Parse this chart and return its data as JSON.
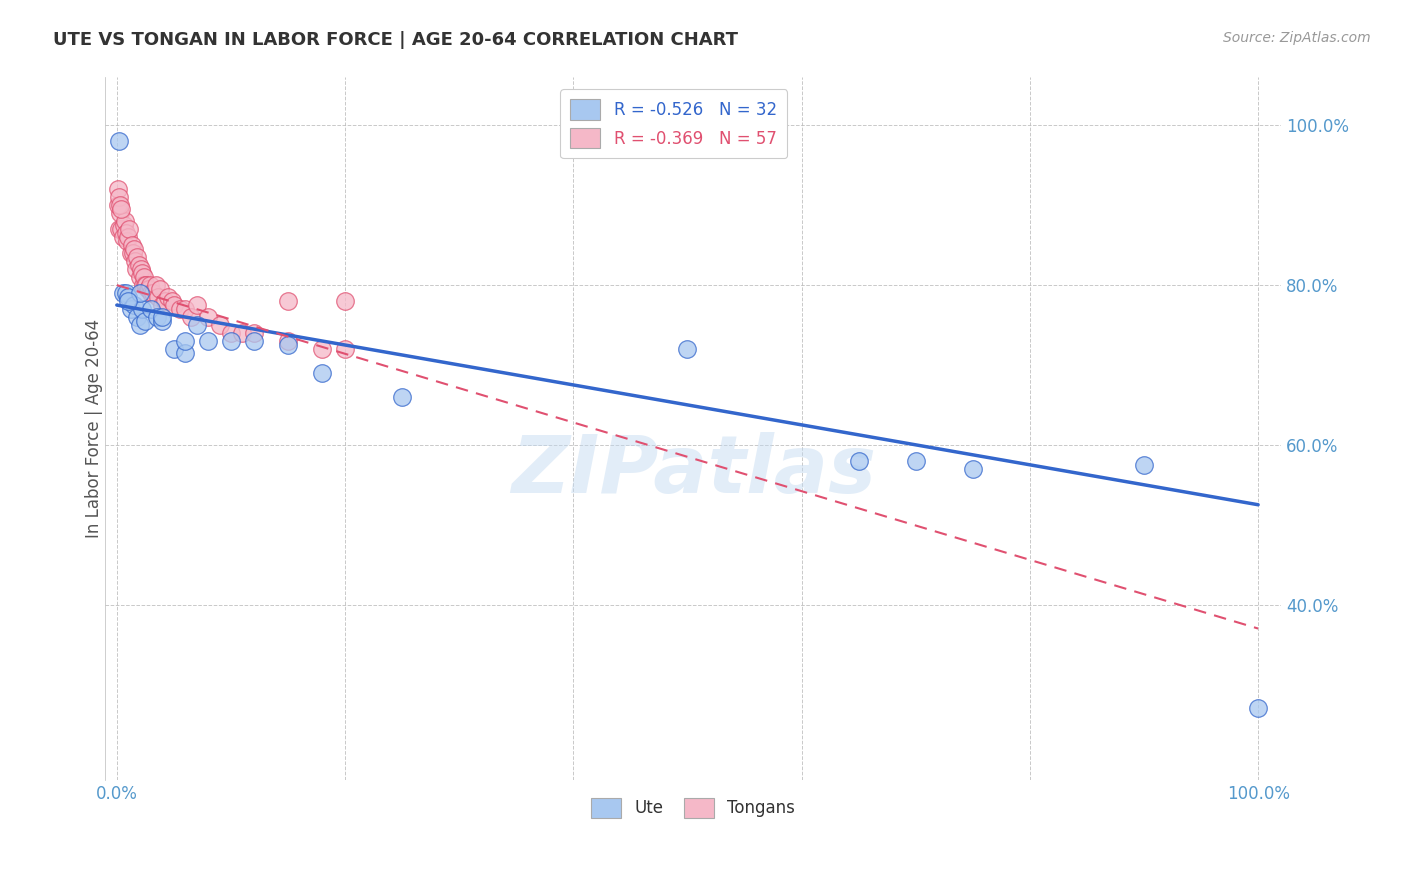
{
  "title": "UTE VS TONGAN IN LABOR FORCE | AGE 20-64 CORRELATION CHART",
  "source": "Source: ZipAtlas.com",
  "ylabel": "In Labor Force | Age 20-64",
  "ute_R": -0.526,
  "ute_N": 32,
  "tongan_R": -0.369,
  "tongan_N": 57,
  "ute_color": "#A8C8F0",
  "tongan_color": "#F5B8C8",
  "ute_line_color": "#3366CC",
  "tongan_line_color": "#E05070",
  "watermark": "ZIPatlas",
  "xlim": [
    -0.01,
    1.02
  ],
  "ylim": [
    0.18,
    1.06
  ],
  "xtick_vals": [
    0.0,
    0.2,
    0.4,
    0.6,
    0.8,
    1.0
  ],
  "xtick_labels": [
    "0.0%",
    "",
    "",
    "",
    "",
    "100.0%"
  ],
  "ytick_vals": [
    0.4,
    0.6,
    0.8,
    1.0
  ],
  "ytick_labels": [
    "40.0%",
    "60.0%",
    "80.0%",
    "100.0%"
  ],
  "grid_color": "#BBBBBB",
  "background_color": "#FFFFFF",
  "ute_scatter_x": [
    0.002,
    0.005,
    0.008,
    0.01,
    0.012,
    0.015,
    0.018,
    0.02,
    0.022,
    0.025,
    0.03,
    0.035,
    0.04,
    0.05,
    0.06,
    0.07,
    0.08,
    0.1,
    0.12,
    0.15,
    0.18,
    0.02,
    0.04,
    0.06,
    0.5,
    0.65,
    0.7,
    0.75,
    0.9,
    0.01,
    0.25,
    1.0
  ],
  "ute_scatter_y": [
    0.98,
    0.79,
    0.79,
    0.785,
    0.77,
    0.775,
    0.76,
    0.75,
    0.77,
    0.755,
    0.77,
    0.76,
    0.755,
    0.72,
    0.715,
    0.75,
    0.73,
    0.73,
    0.73,
    0.725,
    0.69,
    0.79,
    0.76,
    0.73,
    0.72,
    0.58,
    0.58,
    0.57,
    0.575,
    0.78,
    0.66,
    0.27
  ],
  "tongan_scatter_x": [
    0.002,
    0.003,
    0.004,
    0.005,
    0.006,
    0.007,
    0.008,
    0.009,
    0.01,
    0.011,
    0.012,
    0.013,
    0.014,
    0.015,
    0.016,
    0.017,
    0.018,
    0.019,
    0.02,
    0.021,
    0.022,
    0.023,
    0.024,
    0.025,
    0.026,
    0.027,
    0.028,
    0.029,
    0.03,
    0.032,
    0.034,
    0.036,
    0.038,
    0.04,
    0.042,
    0.045,
    0.048,
    0.05,
    0.055,
    0.06,
    0.065,
    0.07,
    0.08,
    0.09,
    0.1,
    0.11,
    0.12,
    0.15,
    0.18,
    0.2,
    0.001,
    0.001,
    0.002,
    0.003,
    0.004,
    0.15,
    0.2
  ],
  "tongan_scatter_y": [
    0.87,
    0.89,
    0.87,
    0.86,
    0.875,
    0.88,
    0.865,
    0.855,
    0.86,
    0.87,
    0.84,
    0.85,
    0.84,
    0.845,
    0.83,
    0.82,
    0.835,
    0.825,
    0.81,
    0.82,
    0.815,
    0.8,
    0.81,
    0.8,
    0.8,
    0.795,
    0.795,
    0.8,
    0.79,
    0.79,
    0.8,
    0.785,
    0.795,
    0.775,
    0.78,
    0.785,
    0.78,
    0.775,
    0.77,
    0.77,
    0.76,
    0.775,
    0.76,
    0.75,
    0.74,
    0.74,
    0.74,
    0.73,
    0.72,
    0.72,
    0.9,
    0.92,
    0.91,
    0.9,
    0.895,
    0.78,
    0.78
  ],
  "ute_line_x0": 0.0,
  "ute_line_y0": 0.775,
  "ute_line_x1": 1.0,
  "ute_line_y1": 0.525,
  "tongan_line_x0": 0.0,
  "tongan_line_y0": 0.8,
  "tongan_line_x1": 1.0,
  "tongan_line_y1": 0.37
}
